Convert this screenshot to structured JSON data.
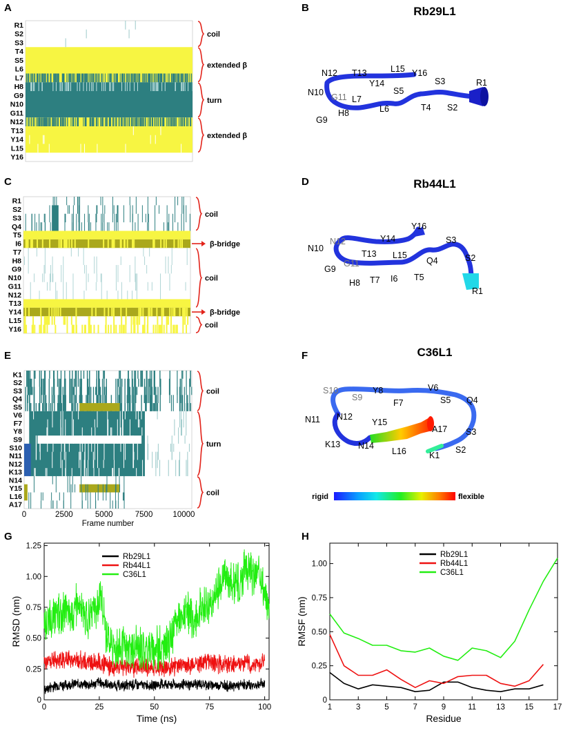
{
  "colors": {
    "helix_yellow": "#f7f542",
    "turn_teal": "#2d7f80",
    "bridge_olive": "#aaa81c",
    "bracket_red": "#e2231a",
    "rb29": "#000000",
    "rb44": "#ee1111",
    "c36": "#22ee11",
    "tube_blue": "#2233dd"
  },
  "panel_labels": {
    "a": "A",
    "b": "B",
    "c": "C",
    "d": "D",
    "e": "E",
    "f": "F",
    "g": "G",
    "h": "H"
  },
  "chart_data": [
    {
      "id": "A",
      "type": "heatmap",
      "title": "",
      "rows": [
        "R1",
        "S2",
        "S3",
        "T4",
        "S5",
        "L6",
        "L7",
        "H8",
        "G9",
        "N10",
        "G11",
        "N12",
        "T13",
        "Y14",
        "L15",
        "Y16"
      ],
      "annotations": [
        {
          "label": "coil",
          "rows": [
            "R1",
            "S3"
          ]
        },
        {
          "label": "extended β",
          "rows": [
            "T4",
            "L7"
          ]
        },
        {
          "label": "turn",
          "rows": [
            "H8",
            "G11"
          ]
        },
        {
          "label": "extended β",
          "rows": [
            "N12",
            "L15"
          ]
        }
      ]
    },
    {
      "id": "C",
      "type": "heatmap",
      "title": "",
      "rows": [
        "R1",
        "S2",
        "S3",
        "Q4",
        "T5",
        "I6",
        "T7",
        "H8",
        "G9",
        "N10",
        "G11",
        "N12",
        "T13",
        "Y14",
        "L15",
        "Y16"
      ],
      "annotations": [
        {
          "label": "coil",
          "rows": [
            "R1",
            "Q4"
          ]
        },
        {
          "label": "β-bridge",
          "rows": [
            "I6",
            "I6"
          ]
        },
        {
          "label": "coil",
          "rows": [
            "T7",
            "T13"
          ]
        },
        {
          "label": "β-bridge",
          "rows": [
            "Y14",
            "Y14"
          ]
        },
        {
          "label": "coil",
          "rows": [
            "L15",
            "Y16"
          ]
        }
      ]
    },
    {
      "id": "E",
      "type": "heatmap",
      "title": "",
      "rows": [
        "K1",
        "S2",
        "S3",
        "Q4",
        "S5",
        "V6",
        "F7",
        "Y8",
        "S9",
        "S10",
        "N11",
        "N12",
        "K13",
        "N14",
        "Y15",
        "L16",
        "A17"
      ],
      "xlabel": "Frame number",
      "xticks": [
        "0",
        "2500",
        "5000",
        "7500",
        "10000"
      ],
      "xlim": [
        0,
        10500
      ],
      "annotations": [
        {
          "label": "coil",
          "rows": [
            "K1",
            "S5"
          ]
        },
        {
          "label": "turn",
          "rows": [
            "V6",
            "K13"
          ]
        },
        {
          "label": "coil",
          "rows": [
            "N14",
            "A17"
          ]
        }
      ]
    },
    {
      "id": "G",
      "type": "line",
      "title": "",
      "xlabel": "Time (ns)",
      "ylabel": "RMSD (nm)",
      "xlim": [
        0,
        102
      ],
      "ylim": [
        0,
        1.27
      ],
      "xticks": [
        "0",
        "25",
        "50",
        "75",
        "100"
      ],
      "yticks": [
        "0",
        "0.25",
        "0.50",
        "0.75",
        "1.00",
        "1.25"
      ],
      "series": [
        {
          "name": "Rb29L1",
          "color": "#000000",
          "x": [
            0,
            5,
            10,
            15,
            20,
            25,
            30,
            35,
            40,
            45,
            50,
            55,
            60,
            65,
            70,
            75,
            80,
            85,
            90,
            95,
            100
          ],
          "values": [
            0.08,
            0.12,
            0.12,
            0.13,
            0.12,
            0.14,
            0.12,
            0.11,
            0.12,
            0.12,
            0.12,
            0.13,
            0.12,
            0.12,
            0.13,
            0.12,
            0.12,
            0.11,
            0.12,
            0.12,
            0.13
          ],
          "noise": 0.05
        },
        {
          "name": "Rb44L1",
          "color": "#ee1111",
          "x": [
            0,
            5,
            10,
            15,
            20,
            25,
            30,
            35,
            40,
            45,
            50,
            55,
            60,
            65,
            70,
            75,
            80,
            85,
            90,
            95,
            100
          ],
          "values": [
            0.3,
            0.32,
            0.33,
            0.32,
            0.3,
            0.31,
            0.26,
            0.27,
            0.26,
            0.27,
            0.26,
            0.27,
            0.27,
            0.28,
            0.3,
            0.31,
            0.29,
            0.28,
            0.3,
            0.29,
            0.31
          ],
          "noise": 0.09
        },
        {
          "name": "C36L1",
          "color": "#22ee11",
          "x": [
            0,
            2,
            5,
            8,
            10,
            13,
            15,
            18,
            20,
            23,
            25,
            27,
            28,
            30,
            35,
            40,
            45,
            50,
            55,
            58,
            60,
            63,
            65,
            68,
            70,
            73,
            75,
            78,
            80,
            82,
            85,
            88,
            90,
            93,
            95,
            98,
            100,
            102
          ],
          "values": [
            0.55,
            0.62,
            0.7,
            0.66,
            0.72,
            0.7,
            0.78,
            0.68,
            0.65,
            0.7,
            0.8,
            0.72,
            0.55,
            0.45,
            0.43,
            0.42,
            0.42,
            0.43,
            0.42,
            0.52,
            0.66,
            0.65,
            0.72,
            0.64,
            0.72,
            0.76,
            0.8,
            0.82,
            0.95,
            1.05,
            0.93,
            0.95,
            1.02,
            1.08,
            1.0,
            1.05,
            0.85,
            0.75
          ],
          "noise": 0.2
        }
      ]
    },
    {
      "id": "H",
      "type": "line",
      "title": "",
      "xlabel": "Residue",
      "ylabel": "RMSF (nm)",
      "xlim": [
        1,
        17
      ],
      "ylim": [
        0,
        1.15
      ],
      "xticks": [
        "1",
        "3",
        "5",
        "7",
        "9",
        "11",
        "13",
        "15",
        "17"
      ],
      "yticks": [
        "0",
        "0.25",
        "0.50",
        "0.75",
        "1.00"
      ],
      "series": [
        {
          "name": "Rb29L1",
          "color": "#000000",
          "x": [
            1,
            2,
            3,
            4,
            5,
            6,
            7,
            8,
            9,
            10,
            11,
            12,
            13,
            14,
            15,
            16
          ],
          "values": [
            0.2,
            0.12,
            0.08,
            0.11,
            0.1,
            0.09,
            0.06,
            0.07,
            0.13,
            0.13,
            0.09,
            0.07,
            0.06,
            0.08,
            0.08,
            0.11
          ]
        },
        {
          "name": "Rb44L1",
          "color": "#ee1111",
          "x": [
            1,
            2,
            3,
            4,
            5,
            6,
            7,
            8,
            9,
            10,
            11,
            12,
            13,
            14,
            15,
            16
          ],
          "values": [
            0.48,
            0.25,
            0.18,
            0.18,
            0.22,
            0.15,
            0.09,
            0.14,
            0.12,
            0.17,
            0.18,
            0.18,
            0.12,
            0.1,
            0.14,
            0.26
          ]
        },
        {
          "name": "C36L1",
          "color": "#22ee11",
          "x": [
            1,
            2,
            3,
            4,
            5,
            6,
            7,
            8,
            9,
            10,
            11,
            12,
            13,
            14,
            15,
            16,
            17
          ],
          "values": [
            0.63,
            0.49,
            0.45,
            0.4,
            0.4,
            0.36,
            0.35,
            0.38,
            0.32,
            0.29,
            0.38,
            0.36,
            0.31,
            0.43,
            0.66,
            0.87,
            1.04
          ]
        }
      ]
    }
  ],
  "structures": {
    "b": {
      "title": "Rb29L1",
      "residues": [
        "R1",
        "S2",
        "S3",
        "T4",
        "S5",
        "L6",
        "L7",
        "H8",
        "G9",
        "N10",
        "G11",
        "N12",
        "T13",
        "Y14",
        "L15",
        "Y16"
      ],
      "grey_residues": [
        "G11"
      ]
    },
    "d": {
      "title": "Rb44L1",
      "residues": [
        "R1",
        "S2",
        "S3",
        "Q4",
        "T5",
        "I6",
        "T7",
        "H8",
        "G9",
        "N10",
        "G11",
        "N12",
        "T13",
        "Y14",
        "L15",
        "Y16"
      ],
      "grey_residues": [
        "G11",
        "N12"
      ]
    },
    "f": {
      "title": "C36L1",
      "residues": [
        "K1",
        "S2",
        "S3",
        "Q4",
        "S5",
        "V6",
        "F7",
        "Y8",
        "S9",
        "S10",
        "N11",
        "N12",
        "K13",
        "N14",
        "Y15",
        "L16",
        "A17"
      ],
      "grey_residues": [
        "S10",
        "S9"
      ],
      "colorbar": {
        "left": "rigid",
        "right": "flexible"
      }
    }
  }
}
